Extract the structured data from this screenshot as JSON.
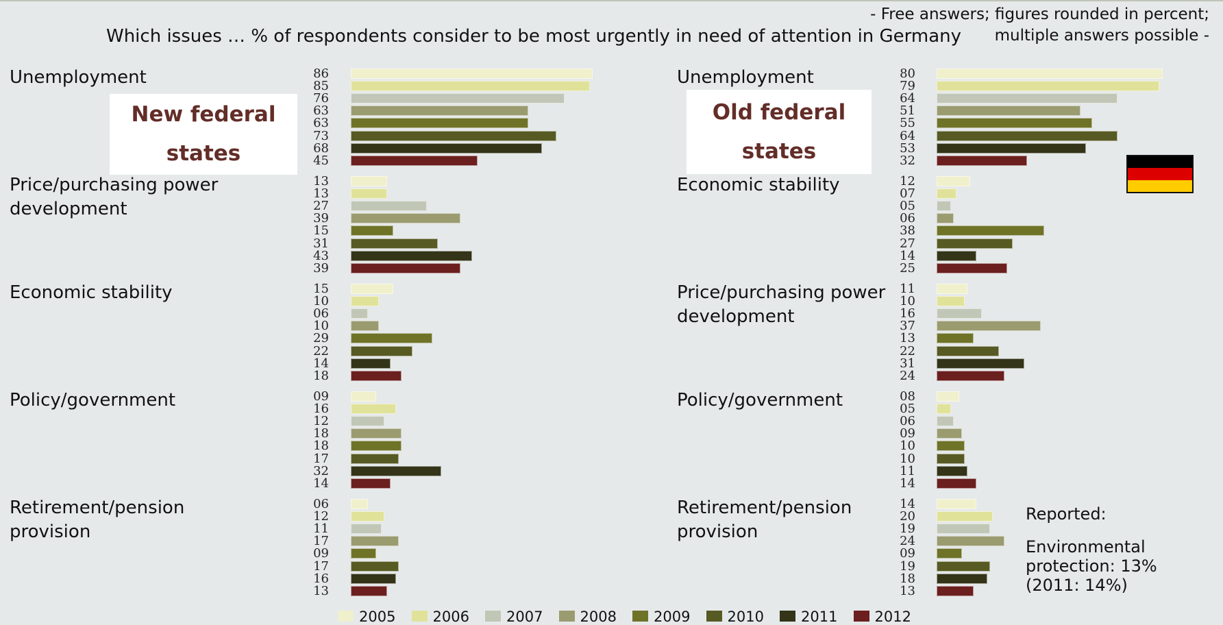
{
  "title": "Which issues … % of respondents consider to be most urgently in need of attention in Germany",
  "note": "- Free answers; figures rounded in percent;\nmultiple answers possible -",
  "years": [
    "2005",
    "2006",
    "2007",
    "2008",
    "2009",
    "2010",
    "2011",
    "2012"
  ],
  "colors": [
    "#f0f0cc",
    "#e0e29a",
    "#c1c7b7",
    "#9a9c70",
    "#6f7328",
    "#575a22",
    "#333418",
    "#6b1f1f"
  ],
  "flag_colors": [
    "#000000",
    "#dd0000",
    "#ffcc00"
  ],
  "flag_icon": "germany-flag-icon",
  "reported": {
    "heading": "Reported:",
    "text": "Environmental protection: 13% (2011: 14%)"
  },
  "chart_data": [
    {
      "type": "bar",
      "orientation": "horizontal",
      "panel": "New federal states",
      "series_names": [
        "2005",
        "2006",
        "2007",
        "2008",
        "2009",
        "2010",
        "2011",
        "2012"
      ],
      "categories": [
        {
          "name": "Unemployment",
          "values": [
            "86",
            "85",
            "76",
            "63",
            "63",
            "73",
            "68",
            "45"
          ]
        },
        {
          "name": "Price/purchasing power development",
          "values": [
            "13",
            "13",
            "27",
            "39",
            "15",
            "31",
            "43",
            "39"
          ]
        },
        {
          "name": "Economic stability",
          "values": [
            "15",
            "10",
            "06",
            "10",
            "29",
            "22",
            "14",
            "18"
          ]
        },
        {
          "name": "Policy/government",
          "values": [
            "09",
            "16",
            "12",
            "18",
            "18",
            "17",
            "32",
            "14"
          ]
        },
        {
          "name": "Retirement/pension provision",
          "values": [
            "06",
            "12",
            "11",
            "17",
            "09",
            "17",
            "16",
            "13"
          ]
        }
      ]
    },
    {
      "type": "bar",
      "orientation": "horizontal",
      "panel": "Old federal states",
      "series_names": [
        "2005",
        "2006",
        "2007",
        "2008",
        "2009",
        "2010",
        "2011",
        "2012"
      ],
      "categories": [
        {
          "name": "Unemployment",
          "values": [
            "80",
            "79",
            "64",
            "51",
            "55",
            "64",
            "53",
            "32"
          ]
        },
        {
          "name": "Economic stability",
          "values": [
            "12",
            "07",
            "05",
            "06",
            "38",
            "27",
            "14",
            "25"
          ]
        },
        {
          "name": "Price/purchasing power development",
          "values": [
            "11",
            "10",
            "16",
            "37",
            "13",
            "22",
            "31",
            "24"
          ]
        },
        {
          "name": "Policy/government",
          "values": [
            "08",
            "05",
            "06",
            "09",
            "10",
            "10",
            "11",
            "14"
          ]
        },
        {
          "name": "Retirement/pension provision",
          "values": [
            "14",
            "20",
            "19",
            "24",
            "09",
            "19",
            "18",
            "13"
          ]
        }
      ]
    }
  ]
}
